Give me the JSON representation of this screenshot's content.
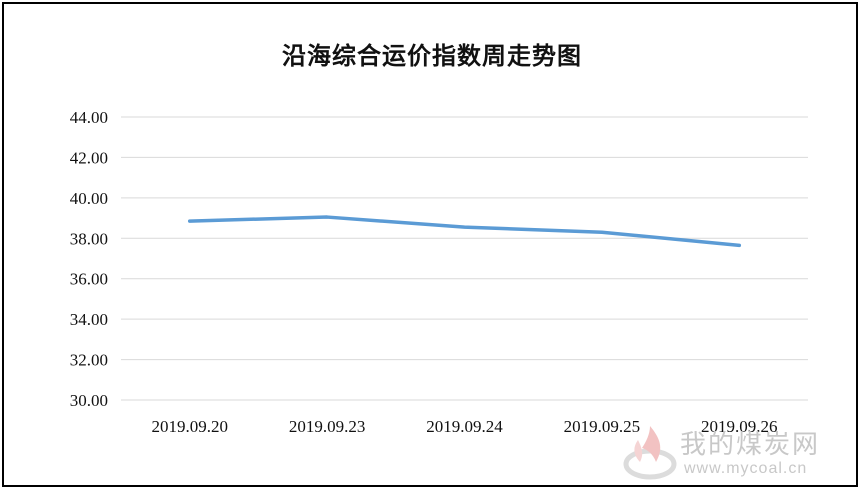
{
  "chart_data": {
    "type": "line",
    "title": "沿海综合运价指数周走势图",
    "categories": [
      "2019.09.20",
      "2019.09.23",
      "2019.09.24",
      "2019.09.25",
      "2019.09.26"
    ],
    "series": [
      {
        "values": [
          38.85,
          39.05,
          38.55,
          38.3,
          37.65
        ],
        "color": "#5b9bd5"
      }
    ],
    "yticks": [
      "44.00",
      "42.00",
      "40.00",
      "38.00",
      "36.00",
      "34.00",
      "32.00",
      "30.00"
    ],
    "ylim": [
      30,
      44
    ],
    "grid": true,
    "xlabel": "",
    "ylabel": ""
  },
  "colors": {
    "line": "#5b9bd5",
    "grid": "#d9d9d9",
    "frame": "#000000"
  },
  "watermark": {
    "icon": "flame-logo-icon",
    "text_cn": "我的煤炭网",
    "url": "www.mycoal.cn"
  }
}
